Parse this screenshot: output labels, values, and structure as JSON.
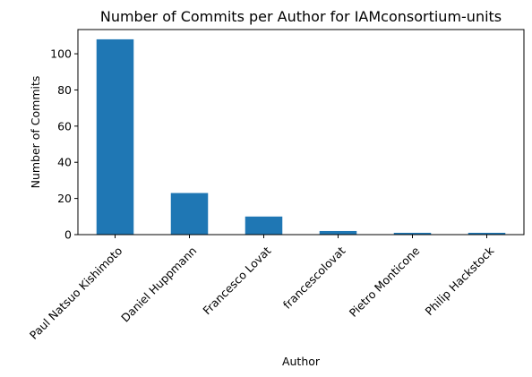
{
  "chart_data": {
    "type": "bar",
    "title": "Number of Commits per Author for IAMconsortium-units",
    "xlabel": "Author",
    "ylabel": "Number of Commits",
    "categories": [
      "Paul Natsuo Kishimoto",
      "Daniel Huppmann",
      "Francesco Lovat",
      "francescolovat",
      "Pietro Monticone",
      "Philip Hackstock"
    ],
    "values": [
      108,
      23,
      10,
      2,
      1,
      1
    ],
    "ylim": [
      0,
      113.4
    ],
    "yticks": [
      0,
      20,
      40,
      60,
      80,
      100
    ],
    "grid": false,
    "bar_color": "#1f77b4"
  }
}
